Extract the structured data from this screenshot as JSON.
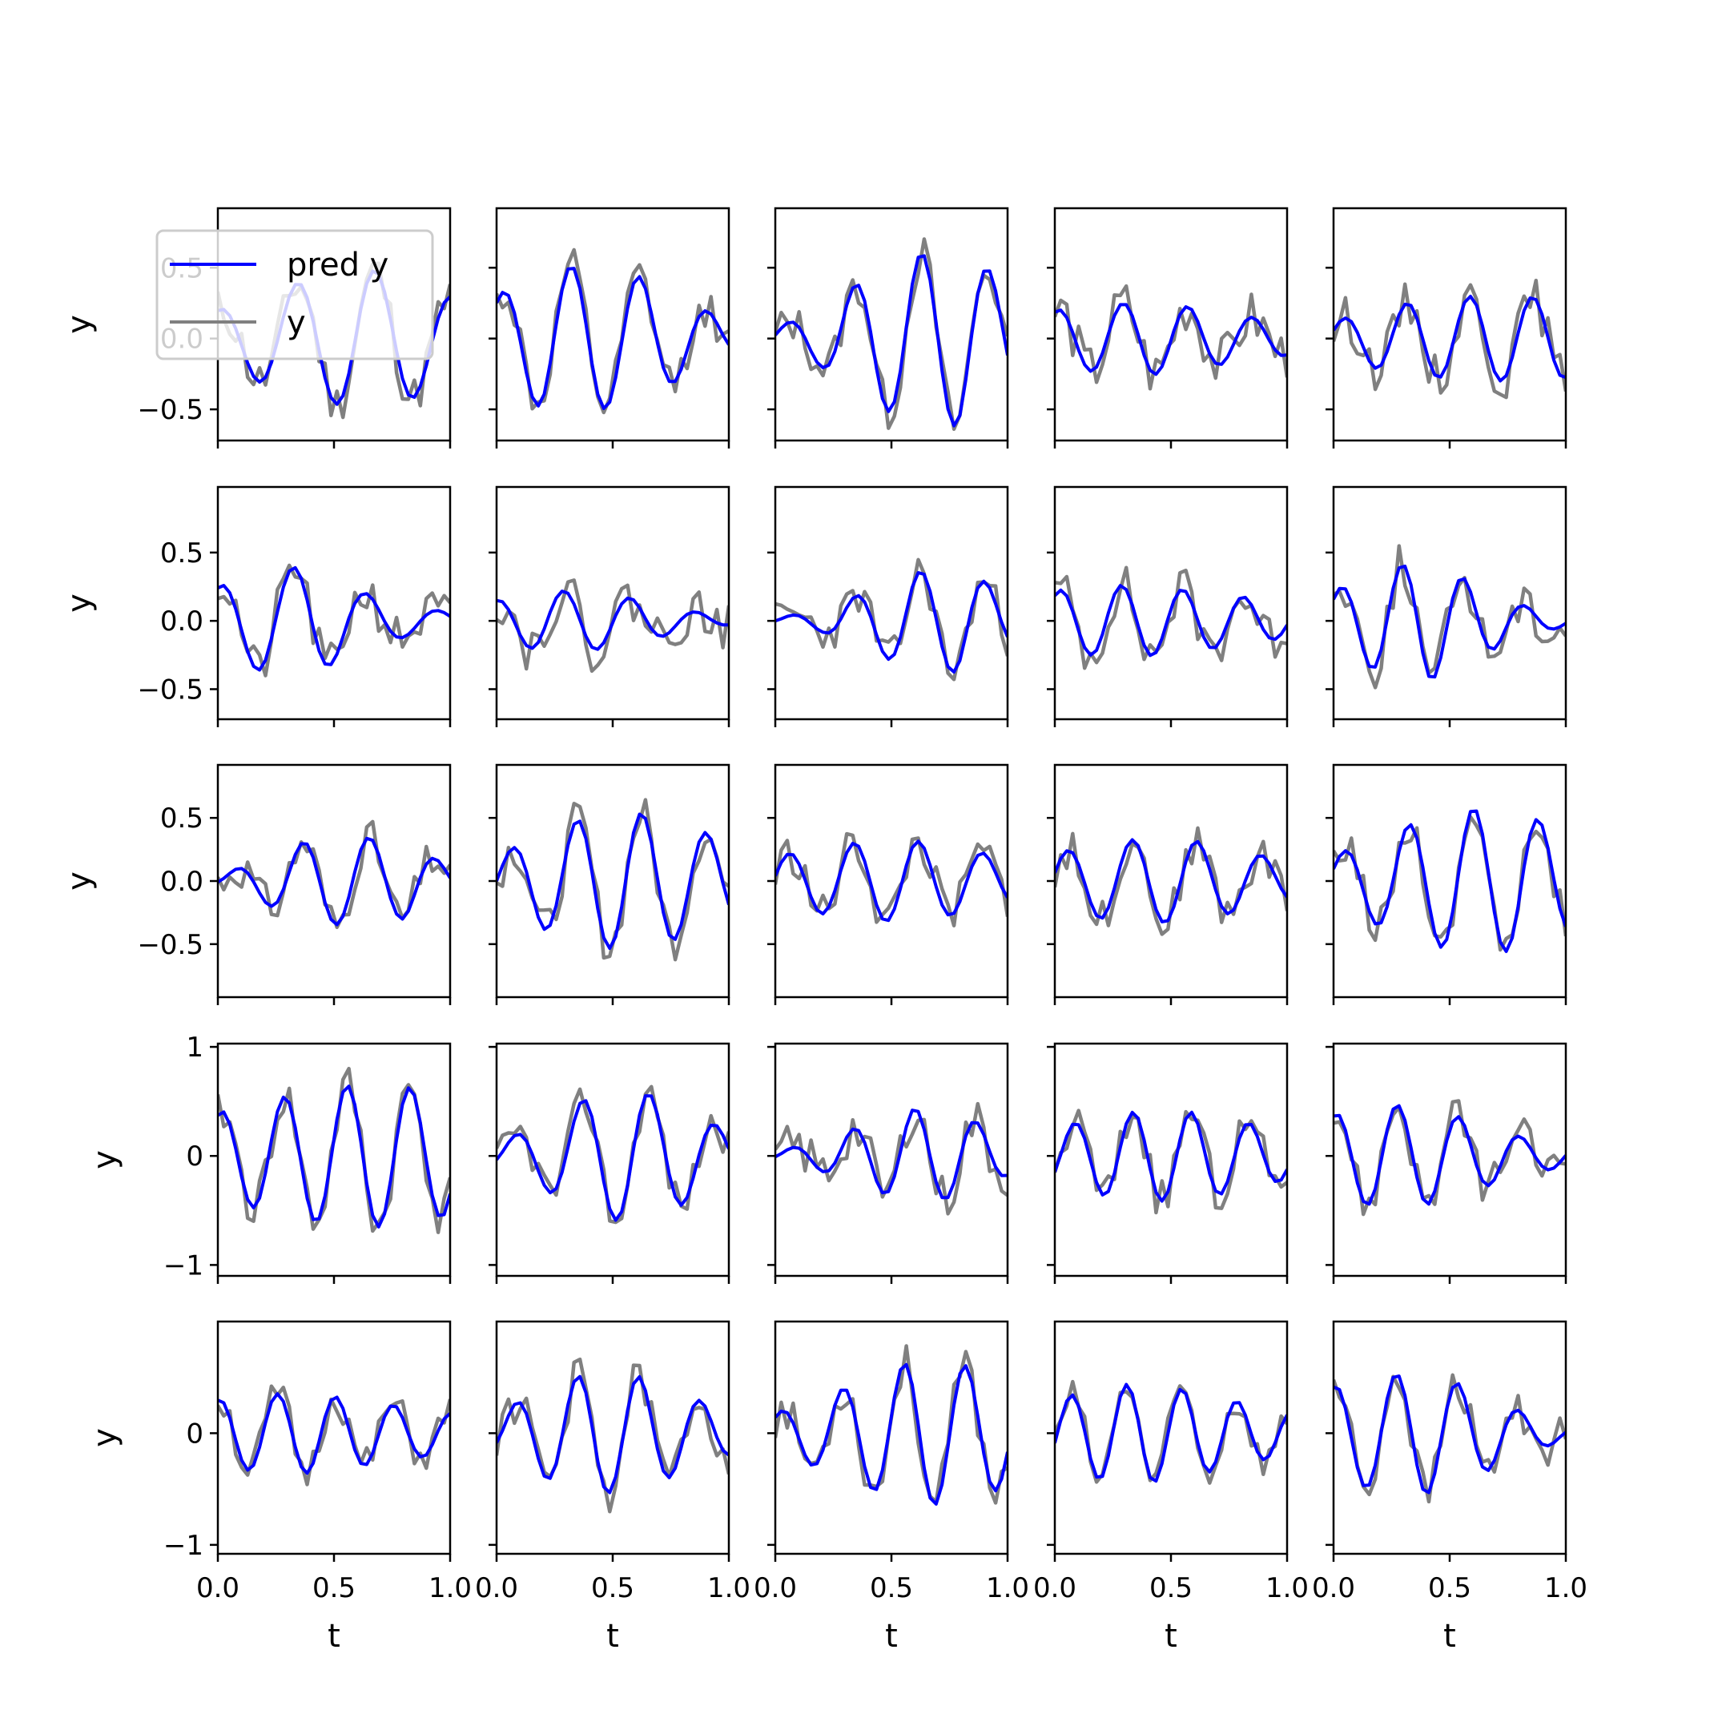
{
  "figure": {
    "legend_labels": [
      "pred y",
      "y"
    ]
  },
  "colors": {
    "pred": "#0000ff",
    "obs": "#808080",
    "axes": "#000000",
    "legend_edge": "#cccccc"
  },
  "chart_data": {
    "type": "line",
    "layout": "5x5 grid of subplots, shared x; y-axis labels only on first column; x-axis tick labels only on last row",
    "xlabel": "t",
    "ylabel": "y",
    "xlim": [
      0,
      1
    ],
    "x_ticks": [
      0.0,
      0.5,
      1.0
    ],
    "x_tick_labels": [
      "0.0",
      "0.5",
      "1.0"
    ],
    "legend": {
      "placement": "top-left of first subplot",
      "entries": [
        "pred y",
        "y"
      ]
    },
    "rows": [
      {
        "ylim": [
          -0.72,
          0.92
        ],
        "y_ticks": [
          -0.5,
          0.0,
          0.5
        ],
        "y_tick_labels": [
          "−0.5",
          "0.0",
          "0.5"
        ],
        "panels": [
          {
            "freq": 3.0,
            "phase": 1.4,
            "amps": [
              0.2,
              0.32,
              0.42,
              0.5,
              0.45,
              0.3
            ],
            "noise": 0.15,
            "seed": 11
          },
          {
            "freq": 3.4,
            "phase": 1.0,
            "amps": [
              0.3,
              0.5,
              0.52,
              0.45,
              0.28,
              0.12
            ],
            "noise": 0.12,
            "seed": 12
          },
          {
            "freq": 3.5,
            "phase": 0.3,
            "amps": [
              0.08,
              0.2,
              0.45,
              0.6,
              0.62,
              0.4
            ],
            "noise": 0.13,
            "seed": 13
          },
          {
            "freq": 3.6,
            "phase": 1.2,
            "amps": [
              0.2,
              0.24,
              0.26,
              0.22,
              0.16,
              0.12
            ],
            "noise": 0.17,
            "seed": 14
          },
          {
            "freq": 3.7,
            "phase": 0.5,
            "amps": [
              0.12,
              0.22,
              0.27,
              0.3,
              0.3,
              0.28
            ],
            "noise": 0.14,
            "seed": 15
          }
        ]
      },
      {
        "ylim": [
          -0.72,
          0.98
        ],
        "y_ticks": [
          -0.5,
          0.0,
          0.5
        ],
        "y_tick_labels": [
          "−0.5",
          "0.0",
          "0.5"
        ],
        "panels": [
          {
            "freq": 3.2,
            "phase": 1.3,
            "amps": [
              0.25,
              0.38,
              0.4,
              0.22,
              0.12,
              0.06
            ],
            "noise": 0.15,
            "seed": 21
          },
          {
            "freq": 3.5,
            "phase": 1.5,
            "amps": [
              0.15,
              0.22,
              0.22,
              0.16,
              0.08,
              0.03
            ],
            "noise": 0.16,
            "seed": 22
          },
          {
            "freq": 3.6,
            "phase": 0.0,
            "amps": [
              0.02,
              0.08,
              0.22,
              0.36,
              0.38,
              0.2
            ],
            "noise": 0.13,
            "seed": 23
          },
          {
            "freq": 3.8,
            "phase": 1.0,
            "amps": [
              0.22,
              0.26,
              0.26,
              0.22,
              0.18,
              0.12
            ],
            "noise": 0.16,
            "seed": 24
          },
          {
            "freq": 3.8,
            "phase": 0.8,
            "amps": [
              0.22,
              0.38,
              0.45,
              0.28,
              0.12,
              0.04
            ],
            "noise": 0.15,
            "seed": 25
          }
        ]
      },
      {
        "ylim": [
          -0.92,
          0.92
        ],
        "y_ticks": [
          -0.5,
          0.0,
          0.5
        ],
        "y_tick_labels": [
          "−0.5",
          "0.0",
          "0.5"
        ],
        "panels": [
          {
            "freq": 3.5,
            "phase": -0.2,
            "amps": [
              0.04,
              0.18,
              0.33,
              0.36,
              0.3,
              0.12
            ],
            "noise": 0.14,
            "seed": 31
          },
          {
            "freq": 3.6,
            "phase": 0.0,
            "amps": [
              0.2,
              0.38,
              0.52,
              0.55,
              0.45,
              0.32
            ],
            "noise": 0.15,
            "seed": 32
          },
          {
            "freq": 3.6,
            "phase": 0.2,
            "amps": [
              0.2,
              0.26,
              0.32,
              0.32,
              0.26,
              0.18
            ],
            "noise": 0.15,
            "seed": 33
          },
          {
            "freq": 3.6,
            "phase": 0.3,
            "amps": [
              0.22,
              0.3,
              0.34,
              0.32,
              0.24,
              0.16
            ],
            "noise": 0.14,
            "seed": 34
          },
          {
            "freq": 3.6,
            "phase": 0.5,
            "amps": [
              0.2,
              0.36,
              0.5,
              0.58,
              0.55,
              0.4
            ],
            "noise": 0.14,
            "seed": 35
          }
        ]
      },
      {
        "ylim": [
          -1.1,
          1.03
        ],
        "y_ticks": [
          -1,
          0,
          1
        ],
        "y_tick_labels": [
          "−1",
          "0",
          "1"
        ],
        "panels": [
          {
            "freq": 3.7,
            "phase": 1.2,
            "amps": [
              0.4,
              0.5,
              0.6,
              0.66,
              0.64,
              0.55
            ],
            "noise": 0.18,
            "seed": 41
          },
          {
            "freq": 3.5,
            "phase": -0.3,
            "amps": [
              0.12,
              0.3,
              0.55,
              0.62,
              0.45,
              0.22
            ],
            "noise": 0.15,
            "seed": 42
          },
          {
            "freq": 3.8,
            "phase": -0.2,
            "amps": [
              0.04,
              0.14,
              0.3,
              0.44,
              0.38,
              0.18
            ],
            "noise": 0.2,
            "seed": 43
          },
          {
            "freq": 4.0,
            "phase": -0.6,
            "amps": [
              0.26,
              0.36,
              0.42,
              0.4,
              0.32,
              0.22
            ],
            "noise": 0.17,
            "seed": 44
          },
          {
            "freq": 3.8,
            "phase": 1.3,
            "amps": [
              0.38,
              0.48,
              0.45,
              0.32,
              0.18,
              0.1
            ],
            "noise": 0.17,
            "seed": 45
          }
        ]
      },
      {
        "ylim": [
          -1.08,
          1.0
        ],
        "y_ticks": [
          -1,
          0
        ],
        "y_tick_labels": [
          "−1",
          "0"
        ],
        "panels": [
          {
            "freq": 4.0,
            "phase": 1.4,
            "amps": [
              0.3,
              0.35,
              0.36,
              0.3,
              0.24,
              0.18
            ],
            "noise": 0.14,
            "seed": 51
          },
          {
            "freq": 3.8,
            "phase": -0.5,
            "amps": [
              0.18,
              0.4,
              0.55,
              0.52,
              0.35,
              0.2
            ],
            "noise": 0.16,
            "seed": 52
          },
          {
            "freq": 3.8,
            "phase": 0.9,
            "amps": [
              0.18,
              0.32,
              0.5,
              0.66,
              0.62,
              0.48
            ],
            "noise": 0.17,
            "seed": 53
          },
          {
            "freq": 4.2,
            "phase": -0.3,
            "amps": [
              0.3,
              0.42,
              0.45,
              0.38,
              0.28,
              0.2
            ],
            "noise": 0.13,
            "seed": 54
          },
          {
            "freq": 3.8,
            "phase": 1.4,
            "amps": [
              0.42,
              0.52,
              0.55,
              0.4,
              0.2,
              0.06
            ],
            "noise": 0.16,
            "seed": 55
          }
        ]
      }
    ]
  }
}
